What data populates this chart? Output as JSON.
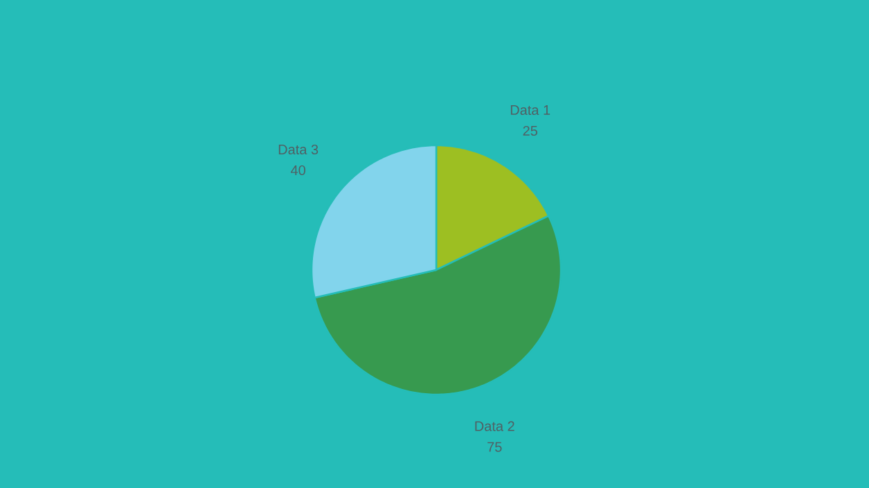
{
  "chart_data": {
    "type": "pie",
    "categories": [
      "Data 1",
      "Data 2",
      "Data 3"
    ],
    "values": [
      25,
      75,
      40
    ],
    "colors": [
      "#9dbf22",
      "#379a4f",
      "#82d4ec"
    ],
    "data_labels": true
  }
}
